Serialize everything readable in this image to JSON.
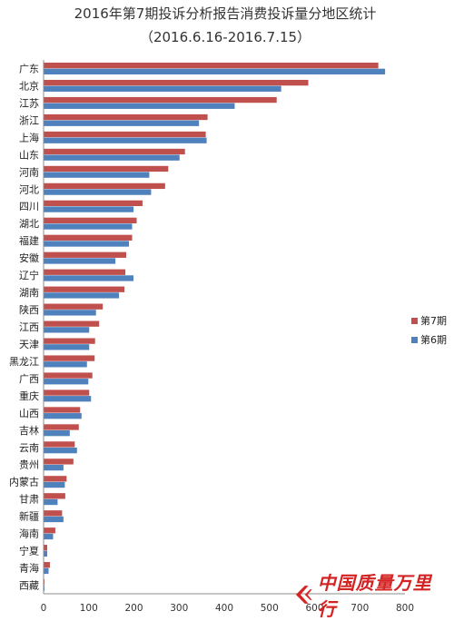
{
  "chart_data": {
    "type": "bar",
    "orientation": "horizontal",
    "title": "2016年第7期投诉分析报告消费投诉量分地区统计",
    "subtitle": "（2016.6.16-2016.7.15）",
    "categories": [
      "广东",
      "北京",
      "江苏",
      "浙江",
      "上海",
      "山东",
      "河南",
      "河北",
      "四川",
      "湖北",
      "福建",
      "安徽",
      "辽宁",
      "湖南",
      "陕西",
      "江西",
      "天津",
      "黑龙江",
      "广西",
      "重庆",
      "山西",
      "吉林",
      "云南",
      "贵州",
      "内蒙古",
      "甘肃",
      "新疆",
      "海南",
      "宁夏",
      "青海",
      "西藏"
    ],
    "series": [
      {
        "name": "第7期",
        "color": "#c0504d",
        "values": [
          740,
          585,
          515,
          362,
          358,
          312,
          275,
          268,
          218,
          205,
          195,
          182,
          180,
          178,
          130,
          122,
          113,
          112,
          107,
          100,
          80,
          77,
          68,
          65,
          50,
          47,
          40,
          25,
          7,
          13,
          1
        ]
      },
      {
        "name": "第6期",
        "color": "#4f81bd",
        "values": [
          755,
          525,
          422,
          343,
          360,
          300,
          233,
          237,
          198,
          195,
          188,
          158,
          198,
          166,
          115,
          100,
          100,
          95,
          98,
          104,
          83,
          57,
          73,
          43,
          46,
          30,
          43,
          20,
          7,
          10,
          1
        ]
      }
    ],
    "xlim": [
      0,
      800
    ],
    "xticks": [
      0,
      100,
      200,
      300,
      400,
      500,
      600,
      700,
      800
    ],
    "legend_position": "right",
    "grid": false
  },
  "watermark": {
    "text": "中国质量万里行",
    "color": "#d42323"
  }
}
